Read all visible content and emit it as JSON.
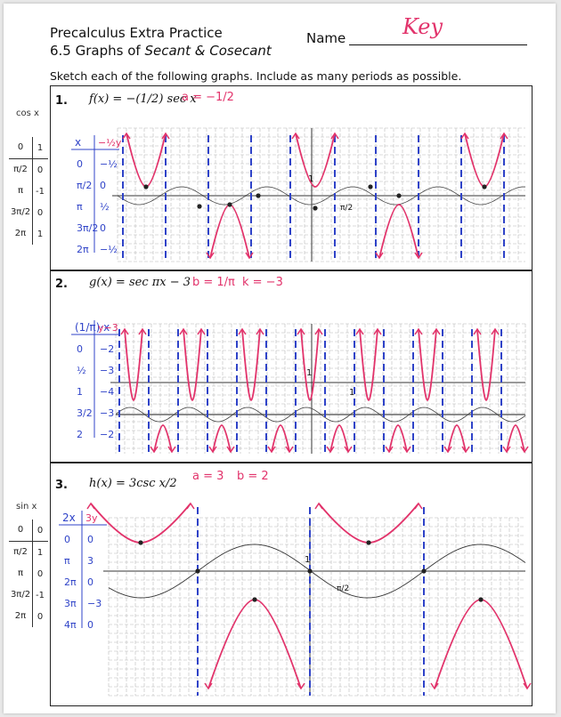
{
  "header": {
    "course": "Precalculus Extra Practice",
    "lesson_prefix": "6.5 Graphs of ",
    "lesson_topic": "Secant & Cosecant",
    "name_label": "Name",
    "name_value": "Key",
    "instructions": "Sketch each of the following graphs.  Include as many periods as possible."
  },
  "side_tables": {
    "cos": {
      "title": "cos x",
      "rows": [
        [
          "0",
          "1"
        ],
        [
          "π/2",
          "0"
        ],
        [
          "π",
          "-1"
        ],
        [
          "3π/2",
          "0"
        ],
        [
          "2π",
          "1"
        ]
      ]
    },
    "sin": {
      "title": "sin x",
      "rows": [
        [
          "0",
          "0"
        ],
        [
          "π/2",
          "1"
        ],
        [
          "π",
          "0"
        ],
        [
          "3π/2",
          "-1"
        ],
        [
          "2π",
          "0"
        ]
      ]
    }
  },
  "problems": [
    {
      "number": "1.",
      "function": "f(x) = −(1/2) sec x",
      "note": "a = −1/2",
      "table_header": [
        "x",
        "−½y"
      ],
      "table_rows": [
        [
          "0",
          "−½"
        ],
        [
          "π/2",
          "0"
        ],
        [
          "π",
          "½"
        ],
        [
          "3π/2",
          "0"
        ],
        [
          "2π",
          "−½"
        ]
      ],
      "axis_labels": [
        "1",
        "π/2"
      ]
    },
    {
      "number": "2.",
      "function": "g(x) = sec πx − 3",
      "note_b": "b = 1/π",
      "note_k": "k = −3",
      "table_header": [
        "(1/π)·x",
        "y−3"
      ],
      "table_rows": [
        [
          "0",
          "−2"
        ],
        [
          "½",
          "−3"
        ],
        [
          "1",
          "−4"
        ],
        [
          "3/2",
          "−3"
        ],
        [
          "2",
          "−2"
        ]
      ],
      "axis_labels": [
        "1",
        "1"
      ]
    },
    {
      "number": "3.",
      "function": "h(x) = 3csc x/2",
      "note_a": "a = 3",
      "note_b": "b = 2",
      "table_header": [
        "2x",
        "3y"
      ],
      "table_rows": [
        [
          "0",
          "0"
        ],
        [
          "π",
          "3"
        ],
        [
          "2π",
          "0"
        ],
        [
          "3π",
          "−3"
        ],
        [
          "4π",
          "0"
        ]
      ],
      "axis_labels": [
        "1",
        "π/2"
      ]
    }
  ],
  "colors": {
    "pink": "#e2336b",
    "blue": "#2f43c8",
    "grid": "#b8b8b8",
    "axis": "#9a9a9a"
  }
}
